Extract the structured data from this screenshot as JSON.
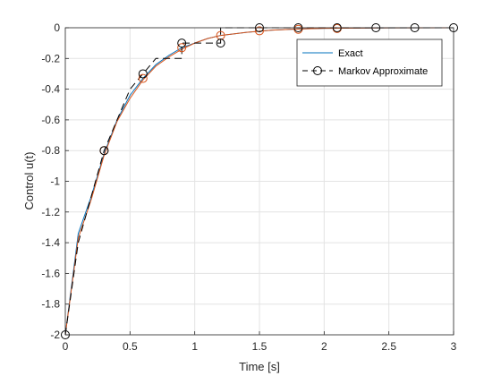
{
  "chart_data": {
    "type": "line",
    "title": "",
    "xlabel": "Time [s]",
    "ylabel": "Control u(t)",
    "xlim": [
      0,
      3
    ],
    "ylim": [
      -2,
      0
    ],
    "xticks": [
      0,
      0.5,
      1,
      1.5,
      2,
      2.5,
      3
    ],
    "xtick_labels": [
      "0",
      "0.5",
      "1",
      "1.5",
      "2",
      "2.5",
      "3"
    ],
    "yticks": [
      0,
      -0.2,
      -0.4,
      -0.6,
      -0.8,
      -1,
      -1.2,
      -1.4,
      -1.6,
      -1.8,
      -2
    ],
    "ytick_labels": [
      "0",
      "-0.2",
      "-0.4",
      "-0.6",
      "-0.8",
      "-1",
      "-1.2",
      "-1.4",
      "-1.6",
      "-1.8",
      "-2"
    ],
    "grid": true,
    "legend_position": "top-right",
    "series": [
      {
        "name": "Exact",
        "style": "solid",
        "color": "#0072BD",
        "x": [
          0,
          0.1,
          0.2,
          0.3,
          0.4,
          0.5,
          0.6,
          0.7,
          0.8,
          0.9,
          1.0,
          1.1,
          1.2,
          1.4,
          1.6,
          1.8,
          2.0,
          2.5,
          3.0
        ],
        "y": [
          -2.0,
          -1.34,
          -1.1,
          -0.82,
          -0.6,
          -0.44,
          -0.33,
          -0.24,
          -0.18,
          -0.13,
          -0.1,
          -0.07,
          -0.05,
          -0.03,
          -0.015,
          -0.008,
          -0.004,
          -0.001,
          0
        ]
      },
      {
        "name": "",
        "style": "solid",
        "color": "#D95319",
        "x": [
          0,
          0.1,
          0.2,
          0.3,
          0.4,
          0.5,
          0.6,
          0.7,
          0.8,
          0.9,
          1.0,
          1.1,
          1.2,
          1.4,
          1.6,
          1.8,
          2.0,
          2.5,
          3.0
        ],
        "y": [
          -2.0,
          -1.37,
          -1.12,
          -0.83,
          -0.61,
          -0.46,
          -0.34,
          -0.25,
          -0.19,
          -0.14,
          -0.1,
          -0.07,
          -0.05,
          -0.03,
          -0.015,
          -0.008,
          -0.004,
          -0.001,
          0
        ],
        "markers_x": [
          0.3,
          0.6,
          0.9,
          1.2,
          1.5,
          1.8,
          2.1
        ],
        "markers_y": [
          -0.8,
          -0.33,
          -0.13,
          -0.05,
          -0.02,
          -0.01,
          -0.005
        ]
      },
      {
        "name": "Markov Approximate",
        "style": "dashed-step",
        "color": "#000000",
        "step_x": [
          0,
          0.1,
          0.1,
          0.2,
          0.2,
          0.3,
          0.3,
          0.4,
          0.4,
          0.5,
          0.5,
          0.6,
          0.6,
          0.7,
          0.7,
          0.9,
          0.9,
          1.2,
          1.2,
          1.5,
          1.5,
          3.0
        ],
        "step_y": [
          -2.0,
          -1.4,
          -1.4,
          -1.1,
          -1.1,
          -0.8,
          -0.8,
          -0.6,
          -0.6,
          -0.4,
          -0.4,
          -0.3,
          -0.3,
          -0.2,
          -0.2,
          -0.2,
          -0.1,
          -0.1,
          0,
          0,
          0,
          0
        ],
        "markers_x": [
          0,
          0.3,
          0.6,
          0.9,
          1.2,
          1.5,
          1.8,
          2.1,
          2.4,
          2.7,
          3.0
        ],
        "markers_y": [
          -2.0,
          -0.8,
          -0.3,
          -0.1,
          -0.1,
          0,
          0,
          0,
          0,
          0,
          0
        ]
      }
    ]
  }
}
